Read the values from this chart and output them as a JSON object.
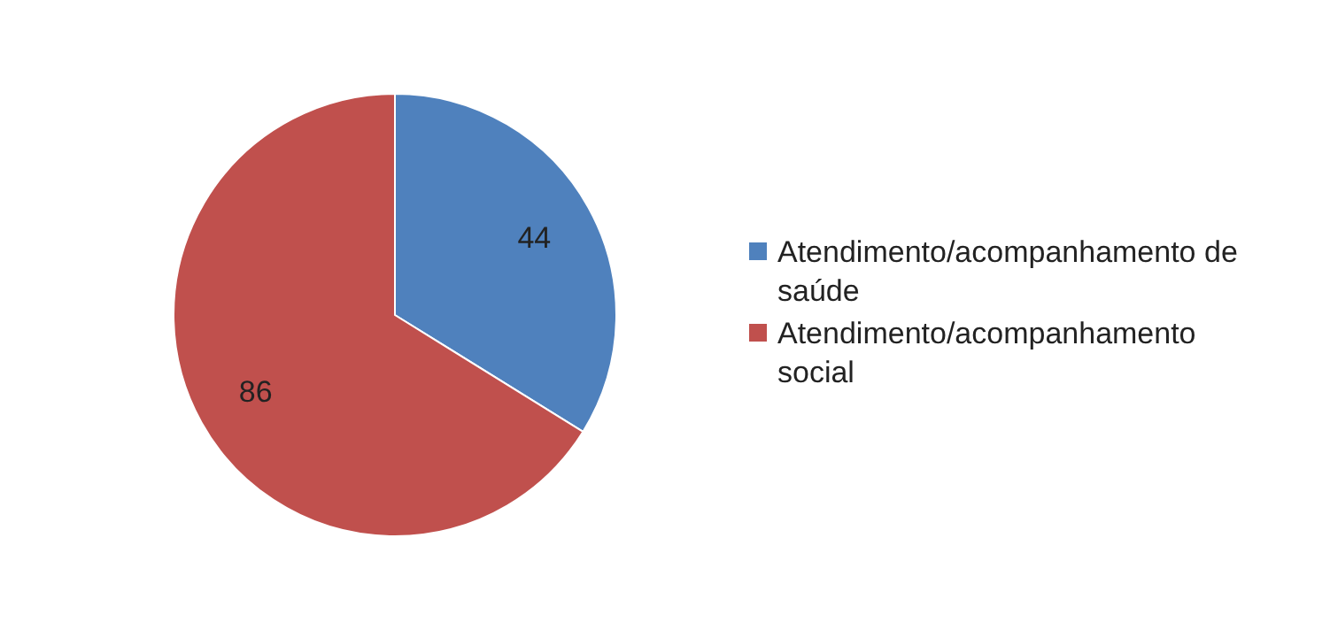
{
  "chart_data": {
    "type": "pie",
    "categories": [
      "Atendimento/acompanhamento de saúde",
      "Atendimento/acompanhamento social"
    ],
    "values": [
      44,
      86
    ],
    "colors": [
      "#4f81bd",
      "#c0504d"
    ],
    "data_labels": true,
    "legend": "right"
  }
}
